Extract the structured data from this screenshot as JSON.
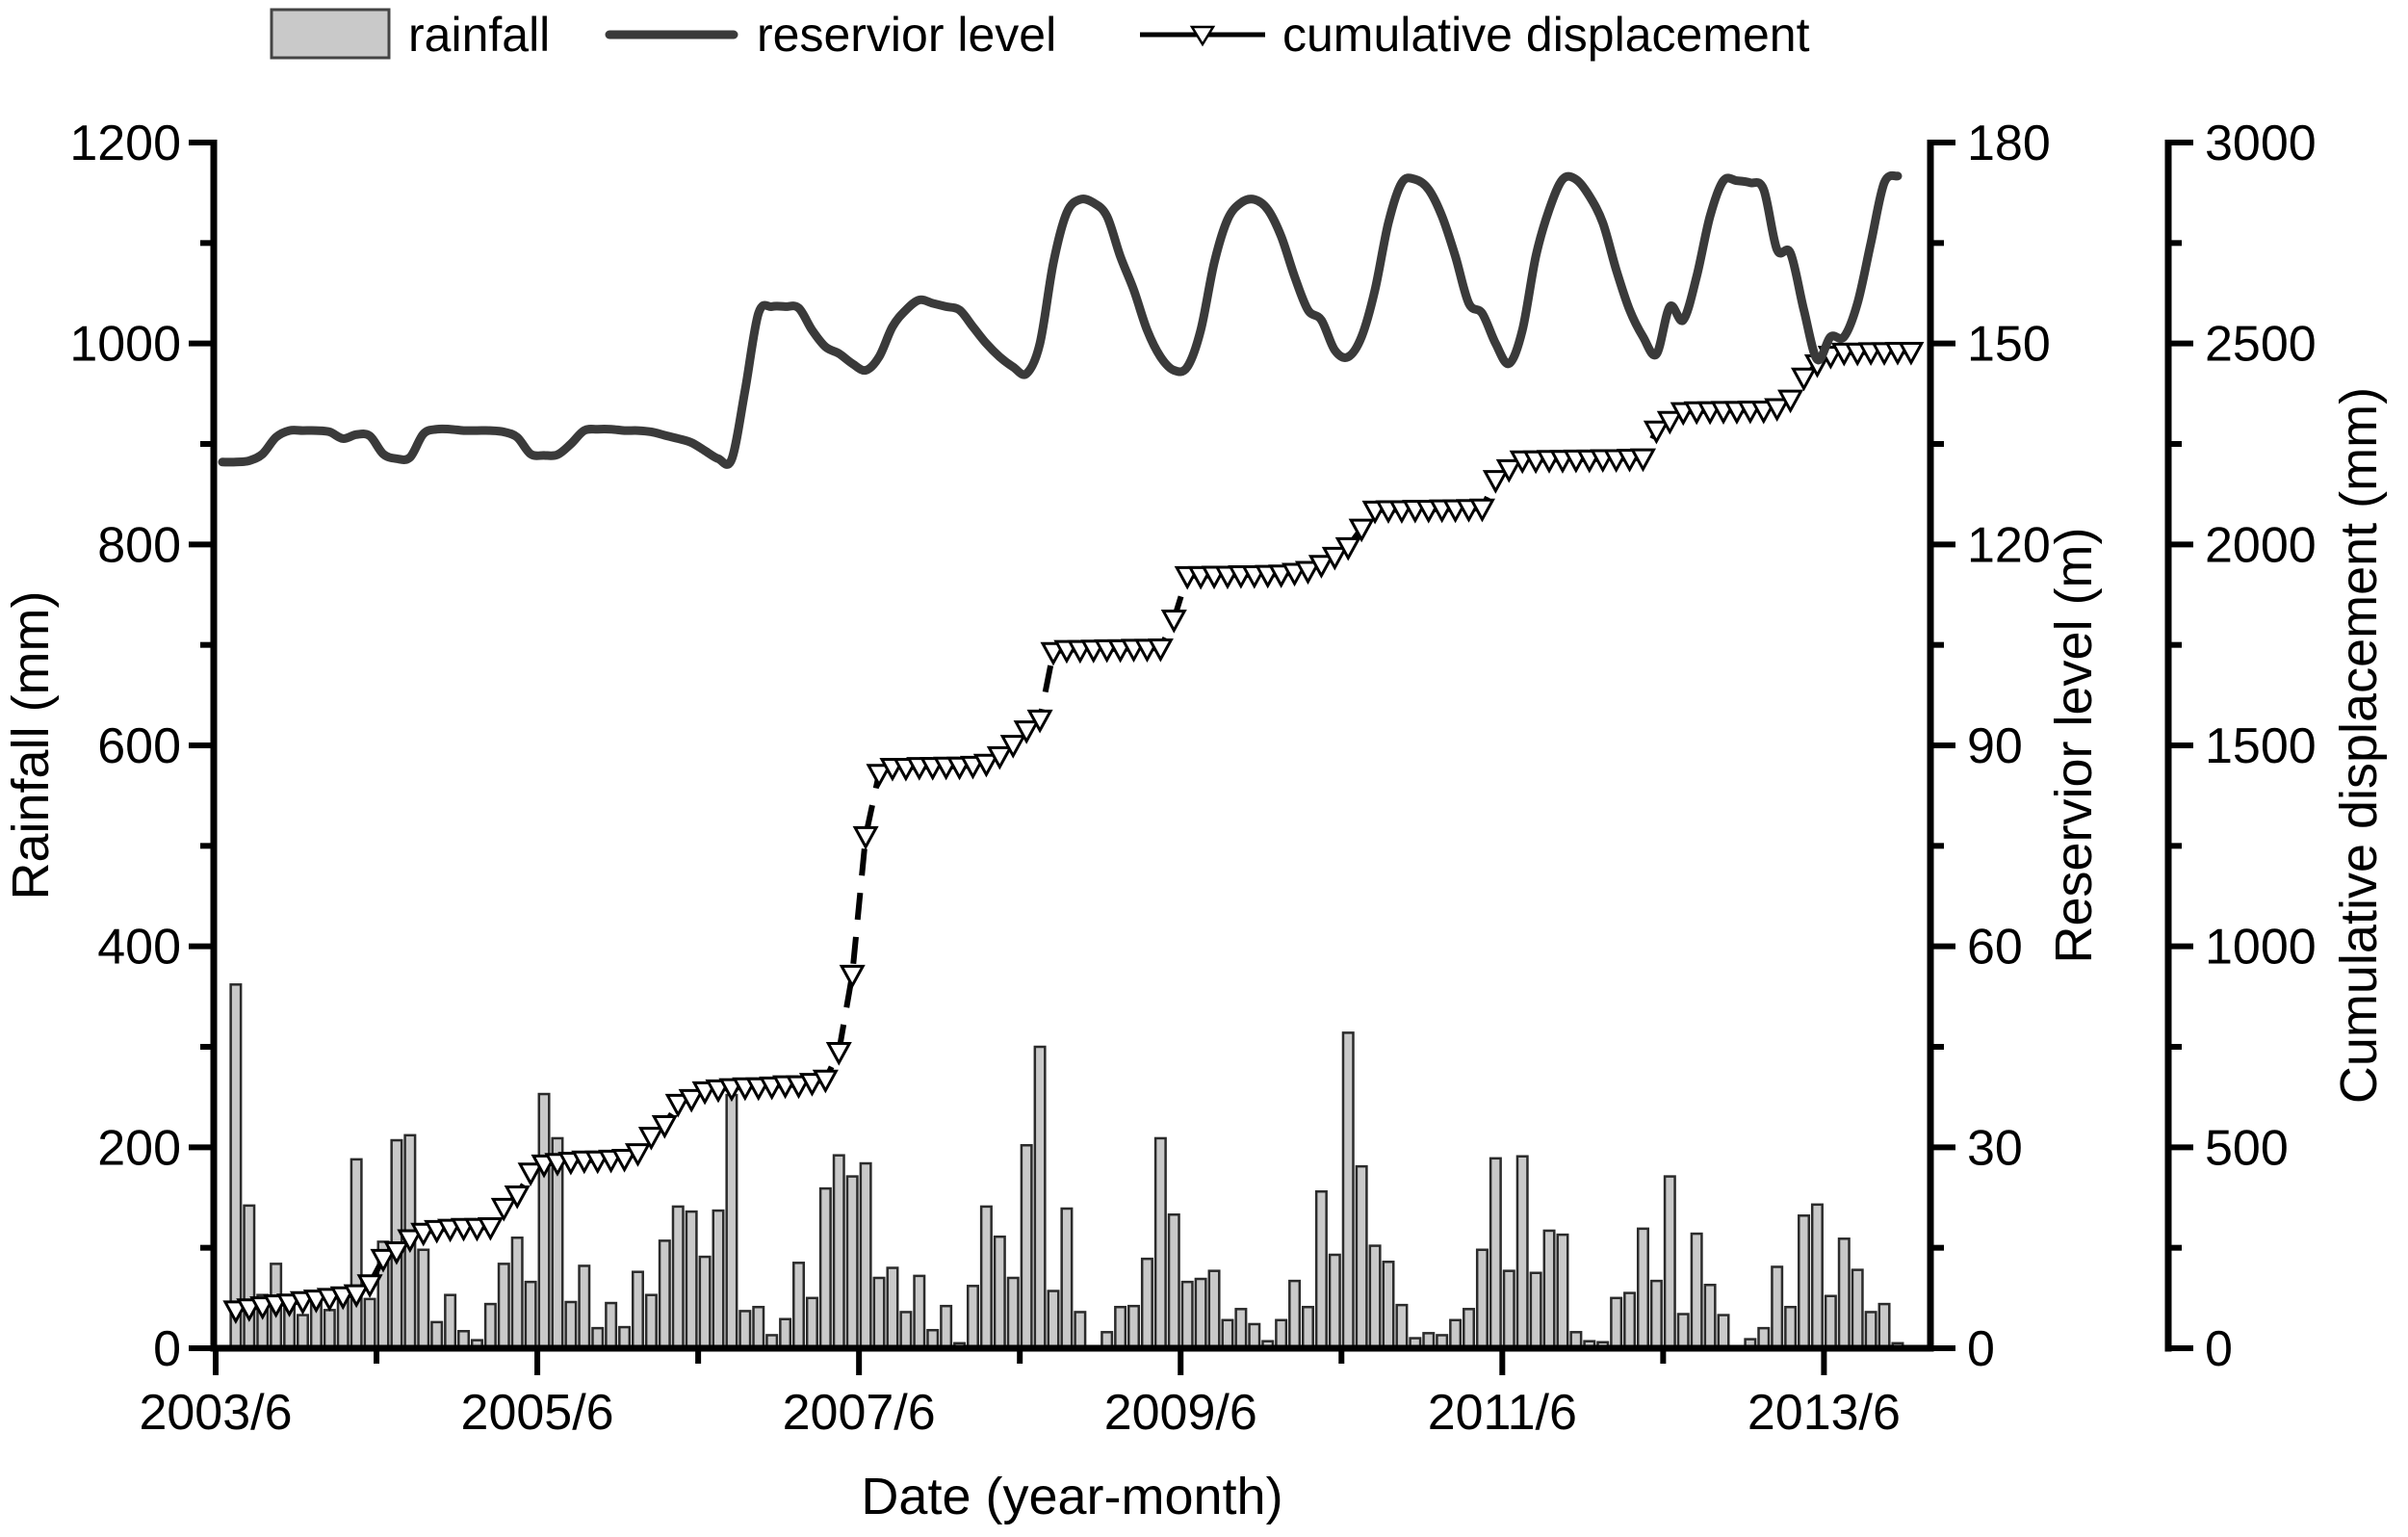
{
  "legend": {
    "items": [
      {
        "label": "rainfall",
        "marker": "bar-swatch"
      },
      {
        "label": "reservior level",
        "marker": "line"
      },
      {
        "label": "cumulative displacement",
        "marker": "line-triangle"
      }
    ]
  },
  "axes": {
    "x": {
      "title": "Date (year-month)",
      "major_tick_labels": [
        {
          "label": "2003/6",
          "month_index": 0
        },
        {
          "label": "2005/6",
          "month_index": 24
        },
        {
          "label": "2007/6",
          "month_index": 48
        },
        {
          "label": "2009/6",
          "month_index": 72
        },
        {
          "label": "2011/6",
          "month_index": 96
        },
        {
          "label": "2013/6",
          "month_index": 120
        }
      ],
      "minor_tick_month_indices": [
        12,
        36,
        60,
        84,
        108
      ]
    },
    "rainfall": {
      "title": "Rainfall (mm)",
      "min": 0,
      "max": 1200,
      "major_step": 200,
      "minor_step": 100
    },
    "reservoir": {
      "title": "Reservior level (m)",
      "min": 0,
      "max": 180,
      "major_step": 30,
      "minor_step": 15
    },
    "displacement": {
      "title": "Cumulative displacement (mm)",
      "min": 0,
      "max": 3000,
      "major_step": 500,
      "minor_step": 250
    }
  },
  "colors": {
    "background": "#ffffff",
    "bar_fill": "#c9c9c9",
    "bar_stroke": "#2b2b2b",
    "reservoir_line": "#3a3a3a",
    "displacement_line": "#000000",
    "marker_fill": "#ffffff",
    "marker_stroke": "#000000",
    "axis": "#000000",
    "text": "#000000"
  },
  "chart_data": {
    "type": "bar+line",
    "x_start": "2003/6",
    "x_unit": "month",
    "n_months": 127,
    "grid": false,
    "legend_position": "top",
    "series": [
      {
        "name": "rainfall",
        "type": "bar",
        "axis": "rainfall",
        "unit": "mm",
        "values": [
          0,
          362,
          142,
          53,
          84,
          49,
          33,
          47,
          38,
          50,
          188,
          49,
          106,
          207,
          212,
          98,
          26,
          53,
          17,
          8,
          44,
          84,
          110,
          66,
          253,
          209,
          46,
          82,
          20,
          45,
          21,
          76,
          53,
          107,
          141,
          136,
          91,
          137,
          252,
          37,
          41,
          13,
          29,
          85,
          50,
          159,
          192,
          171,
          184,
          70,
          80,
          36,
          72,
          18,
          42,
          5,
          62,
          141,
          111,
          70,
          202,
          300,
          57,
          139,
          36,
          0,
          16,
          41,
          42,
          89,
          209,
          133,
          66,
          69,
          77,
          28,
          39,
          24,
          7,
          28,
          67,
          41,
          156,
          93,
          314,
          181,
          102,
          86,
          43,
          10,
          15,
          13,
          28,
          39,
          98,
          189,
          77,
          191,
          75,
          117,
          113,
          16,
          7,
          6,
          50,
          55,
          119,
          67,
          171,
          34,
          114,
          63,
          33,
          0,
          9,
          20,
          81,
          41,
          132,
          143,
          52,
          109,
          78,
          36,
          44,
          5,
          0
        ]
      },
      {
        "name": "reservior level",
        "type": "line",
        "axis": "reservoir",
        "unit": "m",
        "values": [
          132.3,
          132.3,
          132.5,
          133.5,
          136,
          137,
          137,
          137,
          136.8,
          135.8,
          136.4,
          136.2,
          133.5,
          132.8,
          133,
          136.5,
          137.2,
          137.2,
          137,
          137,
          137,
          136.8,
          136,
          133.5,
          133.3,
          133.4,
          135,
          137,
          137.2,
          137.2,
          137,
          137,
          136.8,
          136.3,
          135.8,
          135.2,
          134,
          132.8,
          132.7,
          143,
          154.5,
          155.5,
          155.5,
          155.3,
          152,
          149.5,
          148.5,
          147,
          146,
          148,
          152.5,
          155,
          156.5,
          156,
          155.5,
          155,
          152.5,
          150,
          148,
          146.5,
          145.5,
          150,
          162,
          169.5,
          171.5,
          171,
          169,
          163,
          158,
          152,
          148,
          146,
          146.5,
          152,
          162,
          168.5,
          171,
          171.5,
          170,
          166,
          160,
          155,
          153.5,
          149,
          148,
          151,
          158,
          168,
          174,
          174.5,
          173,
          169,
          163,
          156,
          154.5,
          150,
          147,
          152,
          163,
          170,
          174.5,
          174.5,
          172,
          168,
          161,
          155,
          151,
          148.4,
          155.5,
          153.5,
          160,
          169,
          174.3,
          174.3,
          174,
          173,
          164,
          163.5,
          155,
          147.6,
          151,
          151,
          156,
          165,
          174,
          175,
          null
        ]
      },
      {
        "name": "cumulative displacement",
        "type": "line+marker",
        "axis": "displacement",
        "unit": "mm",
        "marker": "open-triangle-down",
        "values": [
          null,
          95,
          100,
          105,
          110,
          112,
          118,
          122,
          126,
          130,
          135,
          160,
          223,
          242,
          272,
          288,
          295,
          298,
          300,
          300,
          302,
          350,
          381,
          438,
          458,
          462,
          465,
          468,
          468,
          470,
          472,
          486,
          527,
          556,
          609,
          621,
          640,
          645,
          648,
          650,
          650,
          652,
          655,
          655,
          661,
          669,
          738,
          930,
          1275,
          1430,
          1445,
          1445,
          1447,
          1447,
          1448,
          1448,
          1450,
          1455,
          1474,
          1502,
          1538,
          1565,
          1733,
          1738,
          1738,
          1739,
          1740,
          1740,
          1741,
          1741,
          1742,
          1814,
          1922,
          1922,
          1923,
          1923,
          1924,
          1924,
          1925,
          1926,
          1930,
          1935,
          1950,
          1970,
          1994,
          2040,
          2085,
          2086,
          2086,
          2087,
          2087,
          2088,
          2088,
          2089,
          2090,
          2161,
          2188,
          2210,
          2210,
          2211,
          2211,
          2212,
          2212,
          2213,
          2213,
          2214,
          2215,
          2284,
          2308,
          2330,
          2332,
          2332,
          2333,
          2333,
          2334,
          2334,
          2340,
          2361,
          2416,
          2449,
          2470,
          2478,
          2478,
          2479,
          2479,
          2480,
          2480
        ]
      }
    ]
  }
}
